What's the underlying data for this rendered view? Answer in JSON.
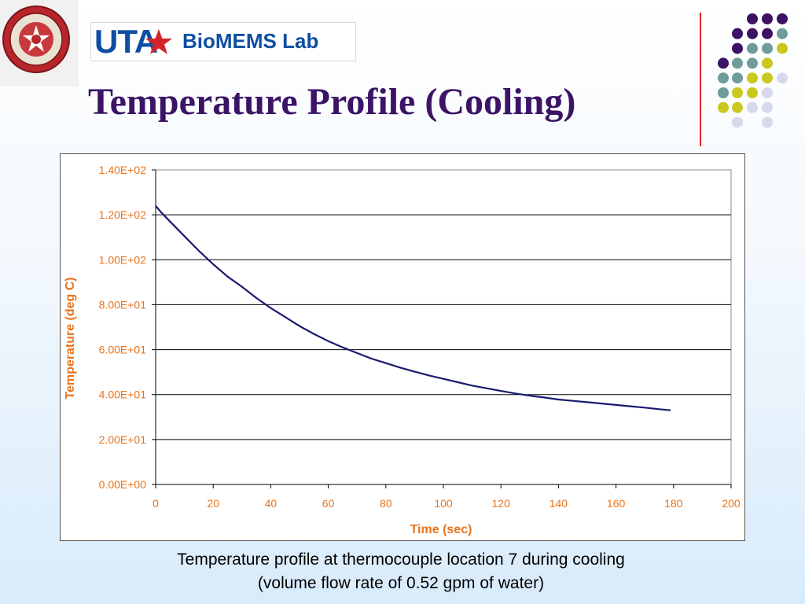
{
  "slide": {
    "title": "Temperature Profile (Cooling)",
    "logo_uta": "UTA",
    "logo_lab": "BioMEMS Lab",
    "seal_icon": "university-seal-icon",
    "caption_line1": "Temperature profile at thermocouple location 7 during cooling",
    "caption_line2": "(volume flow rate of 0.52 gpm of water)",
    "colors": {
      "title": "#3b1466",
      "accent_line": "#e0262c",
      "axis_text": "#e8731b",
      "series": "#1a1a6e",
      "dot_purple": "#3d1163",
      "dot_teal": "#6f9b9b",
      "dot_yellow": "#c8c81e",
      "dot_lavender": "#d7d7ee"
    }
  },
  "chart_data": {
    "type": "line",
    "title": "",
    "xlabel": "Time (sec)",
    "ylabel": "Temperature (deg C)",
    "xlim": [
      0,
      200
    ],
    "ylim": [
      0,
      140
    ],
    "x_ticks": [
      "0",
      "20",
      "40",
      "60",
      "80",
      "100",
      "120",
      "140",
      "160",
      "180",
      "200"
    ],
    "y_ticks": [
      "0.00E+00",
      "2.00E+01",
      "4.00E+01",
      "6.00E+01",
      "8.00E+01",
      "1.00E+02",
      "1.20E+02",
      "1.40E+02"
    ],
    "grid": "horizontal",
    "legend": "none",
    "series": [
      {
        "color": "#1a1a6e",
        "x": [
          0,
          2,
          5,
          10,
          15,
          20,
          25,
          30,
          35,
          40,
          45,
          50,
          55,
          60,
          65,
          70,
          75,
          80,
          85,
          90,
          95,
          100,
          105,
          110,
          115,
          120,
          125,
          130,
          135,
          140,
          145,
          150,
          155,
          160,
          165,
          170,
          175,
          179
        ],
        "y": [
          124,
          121,
          117,
          110.5,
          104,
          98,
          92.5,
          88,
          83,
          78.5,
          74.5,
          70.5,
          67,
          63.8,
          61,
          58.5,
          56,
          54,
          52,
          50.2,
          48.5,
          47,
          45.5,
          44,
          42.8,
          41.6,
          40.5,
          39.5,
          38.7,
          37.8,
          37.2,
          36.6,
          36.0,
          35.4,
          34.8,
          34.2,
          33.5,
          33.0
        ]
      }
    ]
  }
}
